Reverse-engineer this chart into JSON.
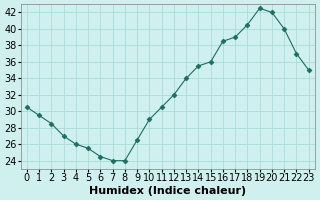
{
  "x": [
    0,
    1,
    2,
    3,
    4,
    5,
    6,
    7,
    8,
    9,
    10,
    11,
    12,
    13,
    14,
    15,
    16,
    17,
    18,
    19,
    20,
    21,
    22,
    23
  ],
  "y": [
    30.5,
    29.5,
    28.5,
    27,
    26,
    25.5,
    24.5,
    24,
    24,
    26.5,
    29,
    30.5,
    32,
    34,
    35.5,
    36,
    38.5,
    39,
    40.5,
    42.5,
    42,
    40,
    37,
    35
  ],
  "line_color": "#1a7060",
  "marker": "D",
  "marker_size": 2.5,
  "bg_color": "#d0f0f0",
  "grid_color": "#a0d8d8",
  "xlabel": "Humidex (Indice chaleur)",
  "ylim": [
    23,
    43
  ],
  "xlim": [
    -0.5,
    23.5
  ],
  "yticks": [
    24,
    26,
    28,
    30,
    32,
    34,
    36,
    38,
    40,
    42
  ],
  "xtick_labels": [
    "0",
    "1",
    "2",
    "3",
    "4",
    "5",
    "6",
    "7",
    "8",
    "9",
    "10",
    "11",
    "12",
    "13",
    "14",
    "15",
    "16",
    "17",
    "18",
    "19",
    "20",
    "21",
    "22",
    "23"
  ],
  "xlabel_fontsize": 8,
  "tick_fontsize": 7
}
